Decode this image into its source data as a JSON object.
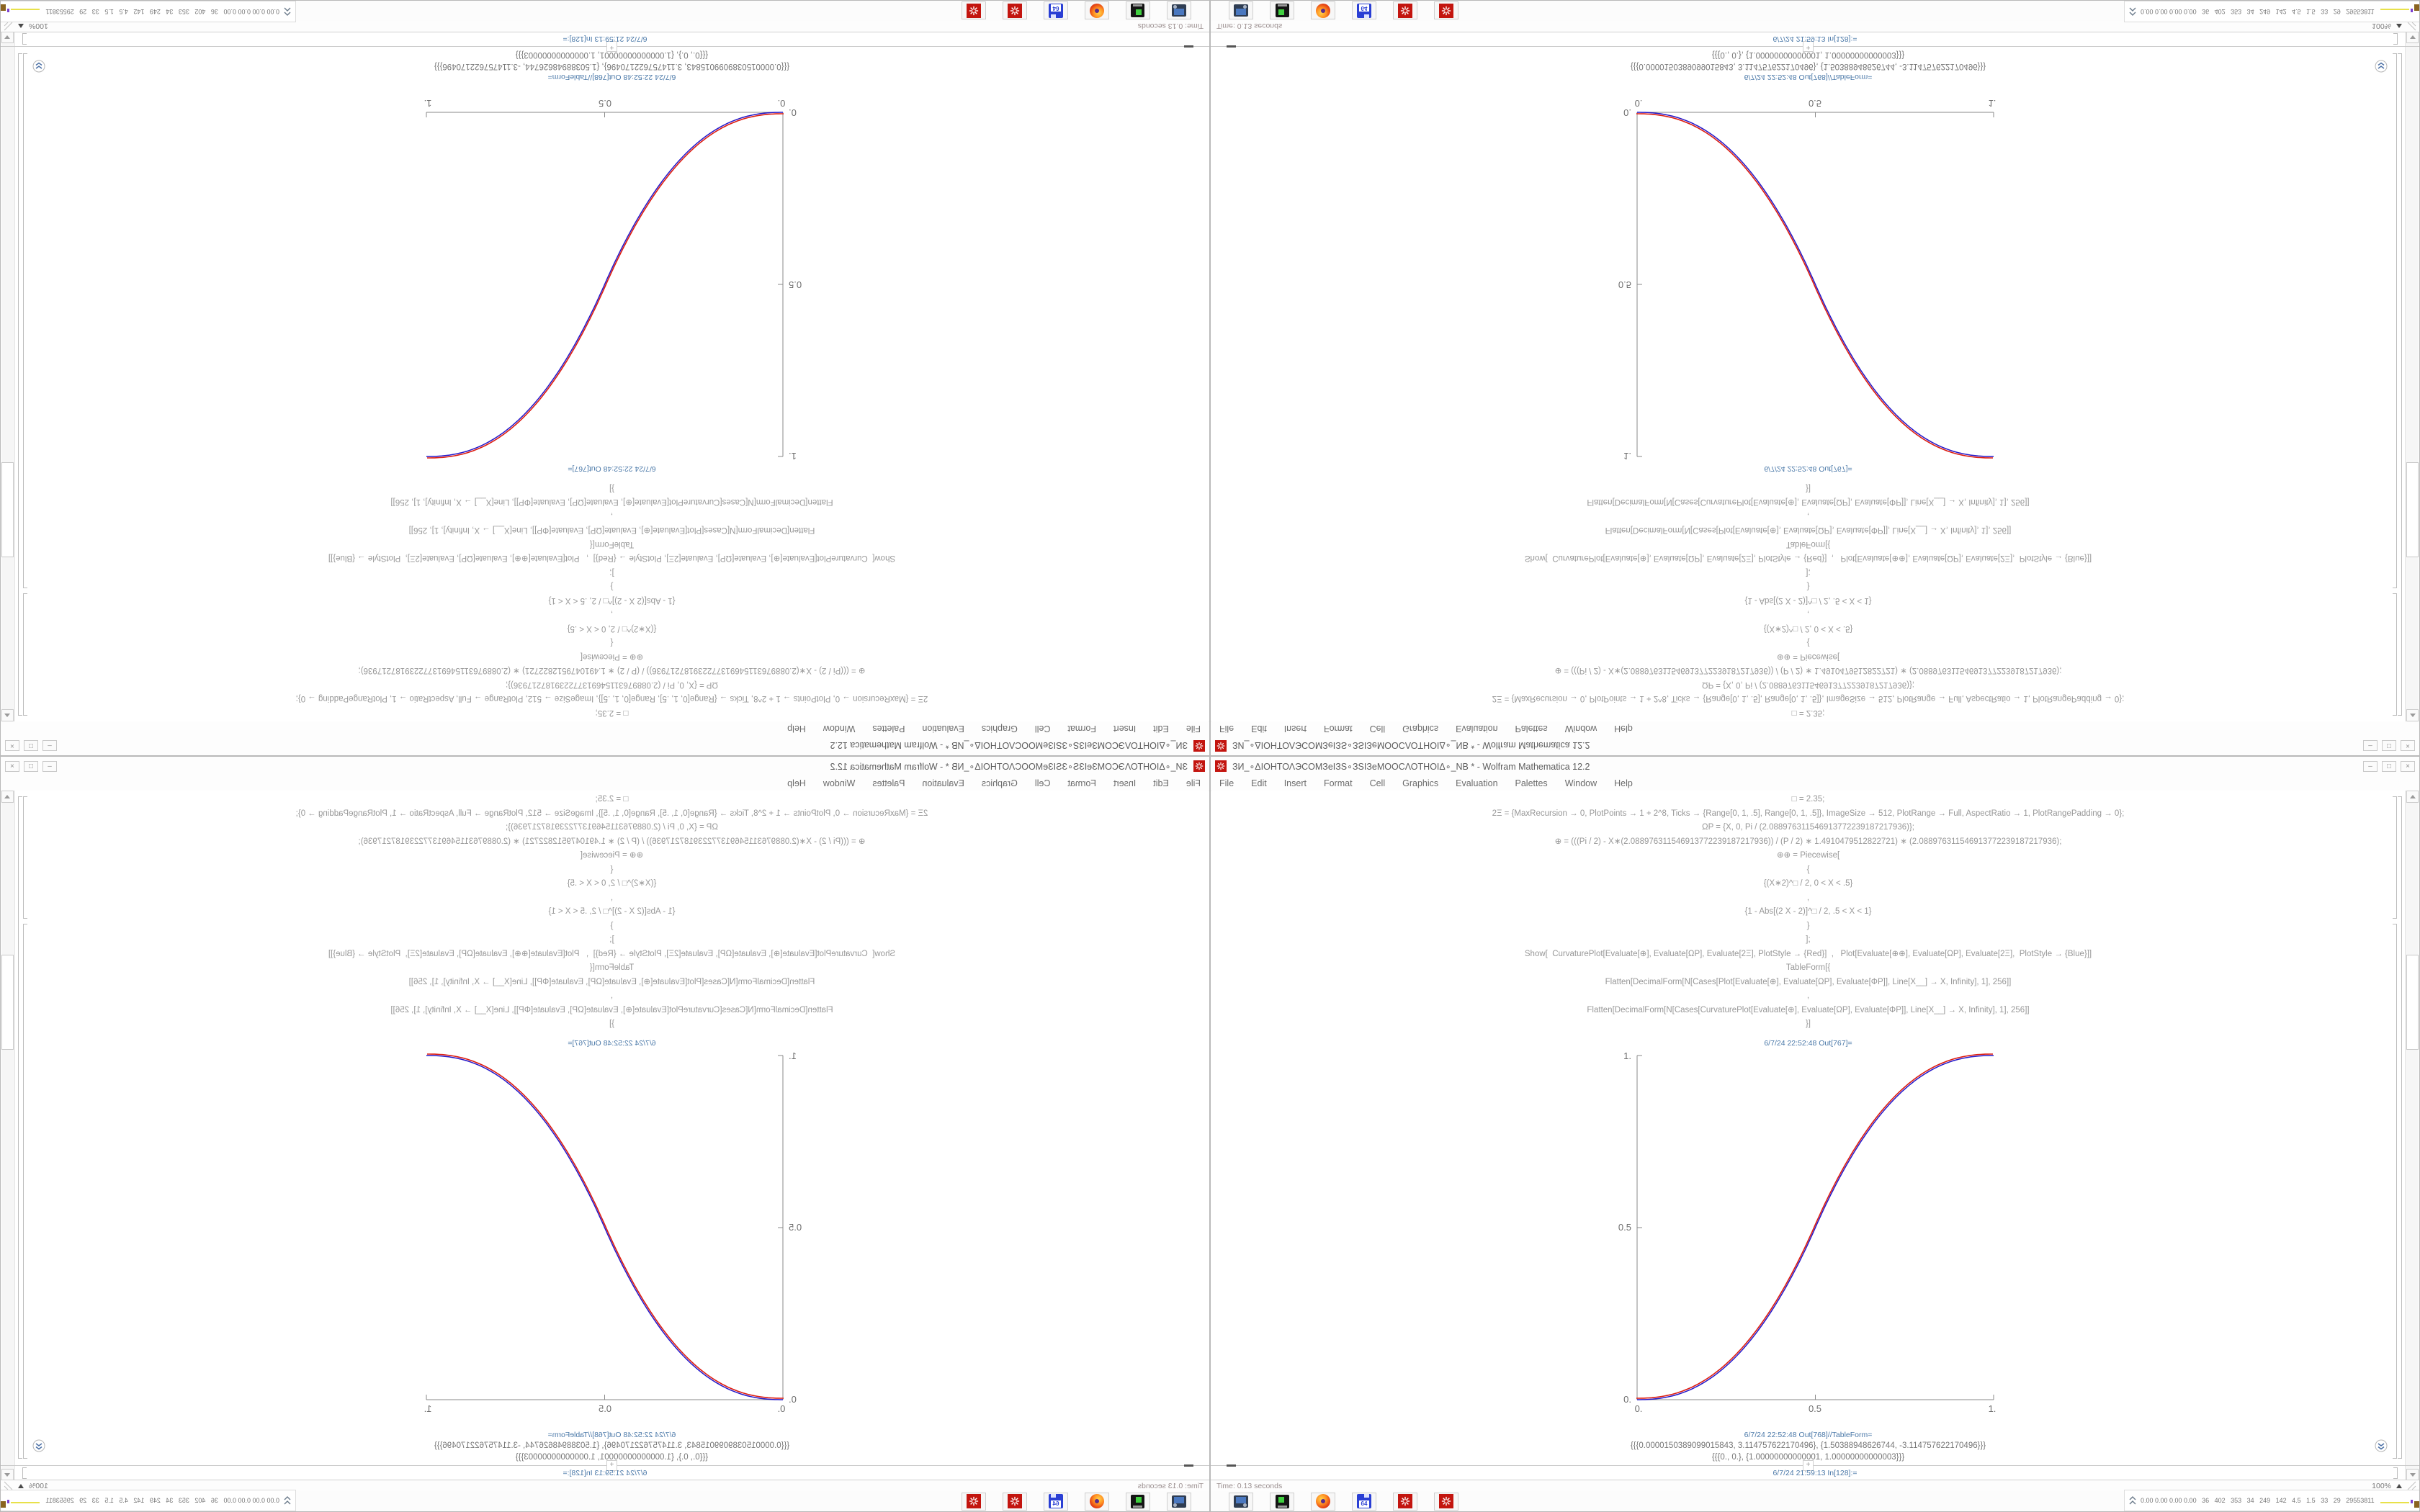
{
  "window": {
    "title": "ЗИ_∘ΔΙΟΗΤΟΛЭCOMЗеІЗЅ∘ЗЅІЗеMOOCΛΟΤΗΟΙΔ∘_NB * - Wolfram Mathematica 12.2",
    "controls": {
      "minimize": "–",
      "maximize": "□",
      "close": "×"
    },
    "menu": [
      "File",
      "Edit",
      "Insert",
      "Format",
      "Cell",
      "Graphics",
      "Evaluation",
      "Palettes",
      "Window",
      "Help"
    ]
  },
  "notebook": {
    "code_lines": [
      "□ = 2.35;",
      "2Ξ = {MaxRecursion → 0, PlotPoints → 1 + 2^8, Ticks → {Range[0, 1, .5], Range[0, 1, .5]}, ImageSize → 512, PlotRange → Full, AspectRatio → 1, PlotRangePadding → 0};",
      "ΩΡ = {X, 0, Pi / (2.088976311546913772239187217936)};",
      "⊕ = (((Pi / 2) - X∗(2.088976311546913772239187217936)) / (P / 2) ∗ 1.4910479512822721) ∗ (2.088976311546913772239187217936);",
      "⊕⊕ = Piecewise[",
      "{",
      "{(X∗2)^□ / 2, 0 < X < .5}",
      ",",
      "{1 - Abs[(2 X - 2)]^□ / 2, .5 < X < 1}",
      "}",
      "];",
      "Show[  CurvaturePlot[Evaluate[⊕], Evaluate[ΩΡ], Evaluate[2Ξ], PlotStyle → {Red}]  ,   Plot[Evaluate[⊕⊕], Evaluate[ΩΡ], Evaluate[2Ξ],  PlotStyle → {Blue}]]",
      "TableForm[{",
      "Flatten[DecimalForm[N[Cases[Plot[Evaluate[⊕], Evaluate[ΩΡ], Evaluate[ΦΡ]], Line[X__] → X, Infinity], 1], 256]]",
      ",",
      "Flatten[DecimalForm[N[Cases[CurvaturePlot[Evaluate[⊕], Evaluate[ΩΡ], Evaluate[ΦΡ]], Line[X__] → X, Infinity], 1], 256]]",
      "}]"
    ],
    "out1_label": "6/7/24 22:52:48 Out[767]=",
    "out2_label": "6/7/24 22:52:48 Out[768]//TableForm=",
    "out2_rows": [
      "{{{0.0000150389099015843, 3.114757622170496}, {1.50388948626744, -3.114757622170496}}}",
      "{{{0., 0.}, {1.00000000000001, 1.00000000000003}}}"
    ],
    "insert_plus": "+",
    "in_prompt": "6/7/24 21:59:13 In[128]:="
  },
  "chart_data": {
    "type": "line",
    "title": "Out[767]= CurvaturePlot (Red) with Plot (Blue) overlay",
    "xlabel": "",
    "ylabel": "",
    "xlim": [
      0,
      1
    ],
    "ylim": [
      0,
      1
    ],
    "grid": false,
    "legend": false,
    "xticks": [
      0,
      0.5,
      1
    ],
    "yticks": [
      0,
      0.5,
      1
    ],
    "xtick_labels": [
      "0.",
      "0.5",
      "1."
    ],
    "ytick_labels": [
      "0.",
      "0.5",
      "1."
    ],
    "exponent": 2.35,
    "piecewise": "y = (2x)^2.35 / 2 for 0 < x < 0.5 ; y = 1 - (2 - 2x)^2.35 / 2 for 0.5 < x < 1",
    "x": [
      0,
      0.1,
      0.2,
      0.3,
      0.4,
      0.5,
      0.6,
      0.7,
      0.8,
      0.9,
      1
    ],
    "series": [
      {
        "name": "CurvaturePlot",
        "color": "#dd1c10",
        "y": [
          0,
          0.011,
          0.058,
          0.151,
          0.296,
          0.5,
          0.704,
          0.849,
          0.942,
          0.989,
          1
        ]
      },
      {
        "name": "Plot",
        "color": "#2417c9",
        "y": [
          0,
          0.011,
          0.058,
          0.151,
          0.296,
          0.5,
          0.704,
          0.849,
          0.942,
          0.989,
          1
        ]
      }
    ]
  },
  "statusbar": {
    "time": "Time: 0.13 seconds",
    "zoom": "100%"
  },
  "taskbar": {
    "floppy_label": "64",
    "monitor_values": "0.00 0.00 0.00 0.00   36   402   353   34   249   142   4.5   1.5   33   29   29553811",
    "monitor_blocks": [
      {
        "color": "#e8e14a",
        "w": 40,
        "h": 2,
        "dy": 8
      },
      {
        "color": "#7a3fd0",
        "w": 3,
        "h": 5,
        "dy": 8
      },
      {
        "color": "#8a6420",
        "w": 17,
        "h": 9,
        "dy": 2
      },
      {
        "color": "#1c3f8f",
        "w": 15,
        "h": 13,
        "dy": 2
      },
      {
        "color": "#7a4a15",
        "w": 15,
        "h": 9,
        "dy": 2
      },
      {
        "color": "#44bb44",
        "w": 30,
        "h": 2,
        "dy": 2
      }
    ]
  }
}
